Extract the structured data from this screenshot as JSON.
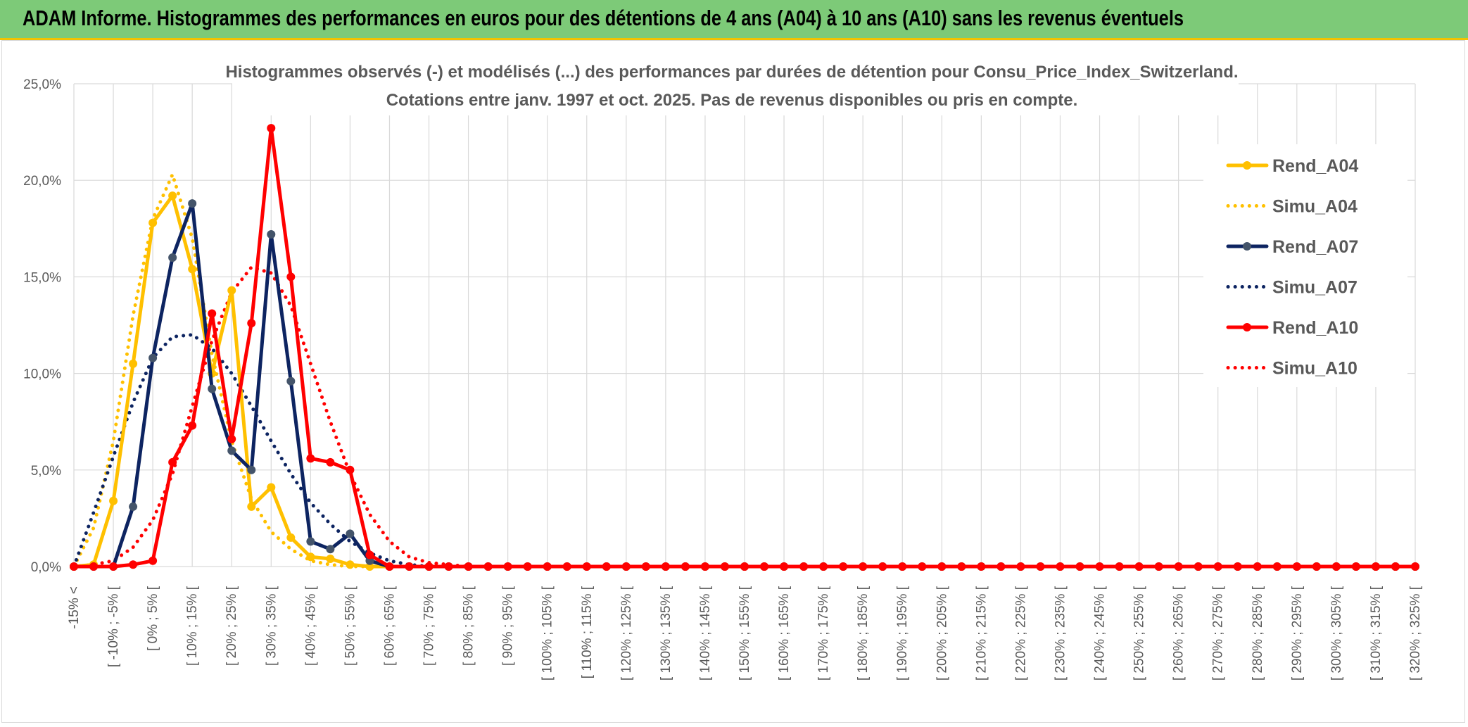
{
  "header": {
    "title": "ADAM Informe. Histogrammes des performances en euros pour des détentions de 4 ans (A04) à 10 ans (A10) sans les revenus éventuels"
  },
  "colors": {
    "header_bg": "#7dca78",
    "header_border": "#f2c200",
    "a04": "#ffc000",
    "a07": "#0d2461",
    "a07_marker": "#44546a",
    "a10": "#ff0000",
    "grid": "#d9d9d9",
    "text": "#595959"
  },
  "chart_data": {
    "type": "line",
    "title": "Histogrammes observés (-) et modélisés (...) des performances par durées de détention pour Consu_Price_Index_Switzerland.",
    "subtitle": "Cotations entre janv. 1997 et oct. 2025. Pas de revenus disponibles ou pris en compte.",
    "xlabel": "",
    "ylabel": "",
    "ylim": [
      0,
      25
    ],
    "yticks": [
      "0,0%",
      "5,0%",
      "10,0%",
      "15,0%",
      "20,0%",
      "25,0%"
    ],
    "grid": true,
    "legend_position": "right",
    "categories": [
      "-15% <",
      "[ -10% ; -5% [",
      "[ 0% ; 5% [",
      "[ 10% ; 15% [",
      "[ 20% ; 25% [",
      "[ 30% ; 35% [",
      "[ 40% ; 45% [",
      "[ 50% ; 55% [",
      "[ 60% ; 65% [",
      "[ 70% ; 75% [",
      "[ 80% ; 85% [",
      "[ 90% ; 95% [",
      "[ 100% ; 105% [",
      "[ 110% ; 115% [",
      "[ 120% ; 125% [",
      "[ 130% ; 135% [",
      "[ 140% ; 145% [",
      "[ 150% ; 155% [",
      "[ 160% ; 165% [",
      "[ 170% ; 175% [",
      "[ 180% ; 185% [",
      "[ 190% ; 195% [",
      "[ 200% ; 205% [",
      "[ 210% ; 215% [",
      "[ 220% ; 225% [",
      "[ 230% ; 235% [",
      "[ 240% ; 245% [",
      "[ 250% ; 255% [",
      "[ 260% ; 265% [",
      "[ 270% ; 275% [",
      "[ 280% ; 285% [",
      "[ 290% ; 295% [",
      "[ 300% ; 305% [",
      "[ 310% ; 315% [",
      "[ 320% ; 325% ["
    ],
    "series": [
      {
        "name": "Rend_A04",
        "style": "solid",
        "color": "#ffc000",
        "markers": true,
        "points": [
          [
            0,
            0
          ],
          [
            1,
            0.1
          ],
          [
            2,
            3.4
          ],
          [
            3,
            10.5
          ],
          [
            4,
            17.8
          ],
          [
            5,
            19.2
          ],
          [
            6,
            15.4
          ],
          [
            7,
            10.0
          ],
          [
            8,
            14.3
          ],
          [
            9,
            3.1
          ],
          [
            10,
            4.1
          ],
          [
            11,
            1.5
          ],
          [
            12,
            0.5
          ],
          [
            13,
            0.4
          ],
          [
            14,
            0.1
          ],
          [
            15,
            0.0
          ]
        ]
      },
      {
        "name": "Simu_A04",
        "style": "dotted",
        "color": "#ffc000",
        "markers": false,
        "points": [
          [
            0,
            0
          ],
          [
            1,
            2.0
          ],
          [
            2,
            6.5
          ],
          [
            3,
            13.0
          ],
          [
            4,
            18.0
          ],
          [
            5,
            20.3
          ],
          [
            6,
            17.0
          ],
          [
            7,
            11.0
          ],
          [
            8,
            6.5
          ],
          [
            9,
            3.5
          ],
          [
            10,
            1.8
          ],
          [
            11,
            0.9
          ],
          [
            12,
            0.3
          ],
          [
            13,
            0.1
          ],
          [
            14,
            0.0
          ]
        ]
      },
      {
        "name": "Rend_A07",
        "style": "solid",
        "color": "#0d2461",
        "marker_color": "#44546a",
        "markers": true,
        "points": [
          [
            0,
            0
          ],
          [
            1,
            0
          ],
          [
            2,
            0
          ],
          [
            3,
            3.1
          ],
          [
            4,
            10.8
          ],
          [
            5,
            16.0
          ],
          [
            6,
            18.8
          ],
          [
            7,
            9.2
          ],
          [
            8,
            6.0
          ],
          [
            9,
            5.0
          ],
          [
            10,
            17.2
          ],
          [
            11,
            9.6
          ],
          [
            12,
            1.3
          ],
          [
            13,
            0.9
          ],
          [
            14,
            1.7
          ],
          [
            15,
            0.3
          ],
          [
            16,
            0.0
          ]
        ]
      },
      {
        "name": "Simu_A07",
        "style": "dotted",
        "color": "#0d2461",
        "markers": false,
        "points": [
          [
            0,
            0
          ],
          [
            1,
            2.8
          ],
          [
            2,
            5.7
          ],
          [
            3,
            8.5
          ],
          [
            4,
            10.8
          ],
          [
            5,
            11.9
          ],
          [
            6,
            12.0
          ],
          [
            7,
            11.3
          ],
          [
            8,
            10.0
          ],
          [
            9,
            8.3
          ],
          [
            10,
            6.5
          ],
          [
            11,
            4.8
          ],
          [
            12,
            3.3
          ],
          [
            13,
            2.2
          ],
          [
            14,
            1.3
          ],
          [
            15,
            0.7
          ],
          [
            16,
            0.3
          ],
          [
            17,
            0.1
          ],
          [
            18,
            0.0
          ]
        ]
      },
      {
        "name": "Rend_A10",
        "style": "solid",
        "color": "#ff0000",
        "markers": true,
        "points": [
          [
            0,
            0
          ],
          [
            1,
            0
          ],
          [
            2,
            0
          ],
          [
            3,
            0.1
          ],
          [
            4,
            0.3
          ],
          [
            5,
            5.4
          ],
          [
            6,
            7.3
          ],
          [
            7,
            13.1
          ],
          [
            8,
            6.6
          ],
          [
            9,
            12.6
          ],
          [
            10,
            22.7
          ],
          [
            11,
            15.0
          ],
          [
            12,
            5.6
          ],
          [
            13,
            5.4
          ],
          [
            14,
            5.0
          ],
          [
            15,
            0.6
          ],
          [
            16,
            0.0
          ]
        ]
      },
      {
        "name": "Simu_A10",
        "style": "dotted",
        "color": "#ff0000",
        "markers": false,
        "points": [
          [
            0,
            0
          ],
          [
            1,
            0.1
          ],
          [
            2,
            0.3
          ],
          [
            3,
            1.0
          ],
          [
            4,
            2.4
          ],
          [
            5,
            4.8
          ],
          [
            6,
            8.3
          ],
          [
            7,
            11.7
          ],
          [
            8,
            14.2
          ],
          [
            9,
            15.5
          ],
          [
            10,
            15.2
          ],
          [
            11,
            13.5
          ],
          [
            12,
            10.5
          ],
          [
            13,
            7.5
          ],
          [
            14,
            4.8
          ],
          [
            15,
            2.7
          ],
          [
            16,
            1.3
          ],
          [
            17,
            0.5
          ],
          [
            18,
            0.2
          ],
          [
            19,
            0.1
          ],
          [
            20,
            0.0
          ]
        ]
      }
    ]
  }
}
